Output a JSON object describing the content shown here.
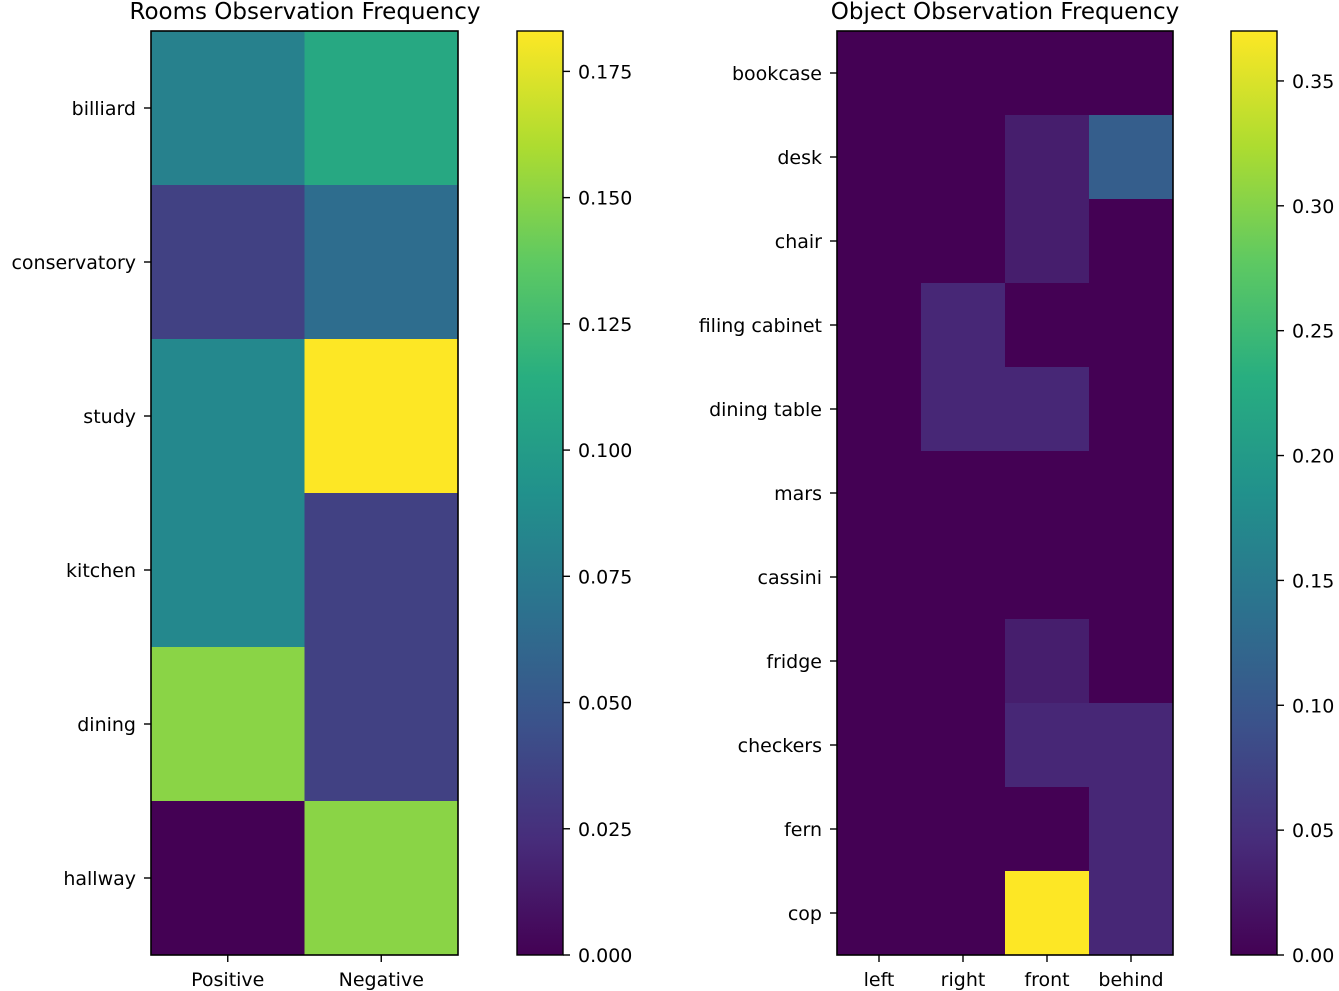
{
  "chart_data": [
    {
      "type": "heatmap",
      "title": "Rooms Observation Frequency",
      "columns": [
        "Positive",
        "Negative"
      ],
      "rows": [
        "billiard",
        "conservatory",
        "study",
        "kitchen",
        "dining",
        "hallway"
      ],
      "values": [
        [
          0.08,
          0.11
        ],
        [
          0.035,
          0.065
        ],
        [
          0.085,
          0.183
        ],
        [
          0.085,
          0.035
        ],
        [
          0.15,
          0.035
        ],
        [
          0.0,
          0.15
        ]
      ],
      "colormap": "viridis",
      "vmin": 0.0,
      "vmax": 0.183,
      "colorbar_ticks": [
        "0.000",
        "0.025",
        "0.050",
        "0.075",
        "0.100",
        "0.125",
        "0.150",
        "0.175"
      ]
    },
    {
      "type": "heatmap",
      "title": "Object Observation Frequency",
      "columns": [
        "left",
        "right",
        "front",
        "behind"
      ],
      "rows": [
        "bookcase",
        "desk",
        "chair",
        "filing cabinet",
        "dining table",
        "mars",
        "cassini",
        "fridge",
        "checkers",
        "fern",
        "cop"
      ],
      "values": [
        [
          0,
          0,
          0,
          0
        ],
        [
          0,
          0,
          0.03,
          0.11
        ],
        [
          0,
          0,
          0.03,
          0
        ],
        [
          0,
          0.04,
          0,
          0
        ],
        [
          0,
          0.04,
          0.04,
          0
        ],
        [
          0,
          0,
          0,
          0
        ],
        [
          0,
          0,
          0,
          0
        ],
        [
          0,
          0,
          0.03,
          0
        ],
        [
          0,
          0,
          0.04,
          0.04
        ],
        [
          0,
          0,
          0,
          0.04
        ],
        [
          0,
          0,
          0.37,
          0.04
        ]
      ],
      "colormap": "viridis",
      "vmin": 0.0,
      "vmax": 0.37,
      "colorbar_ticks": [
        "0.00",
        "0.05",
        "0.10",
        "0.15",
        "0.20",
        "0.25",
        "0.30",
        "0.35"
      ]
    }
  ]
}
